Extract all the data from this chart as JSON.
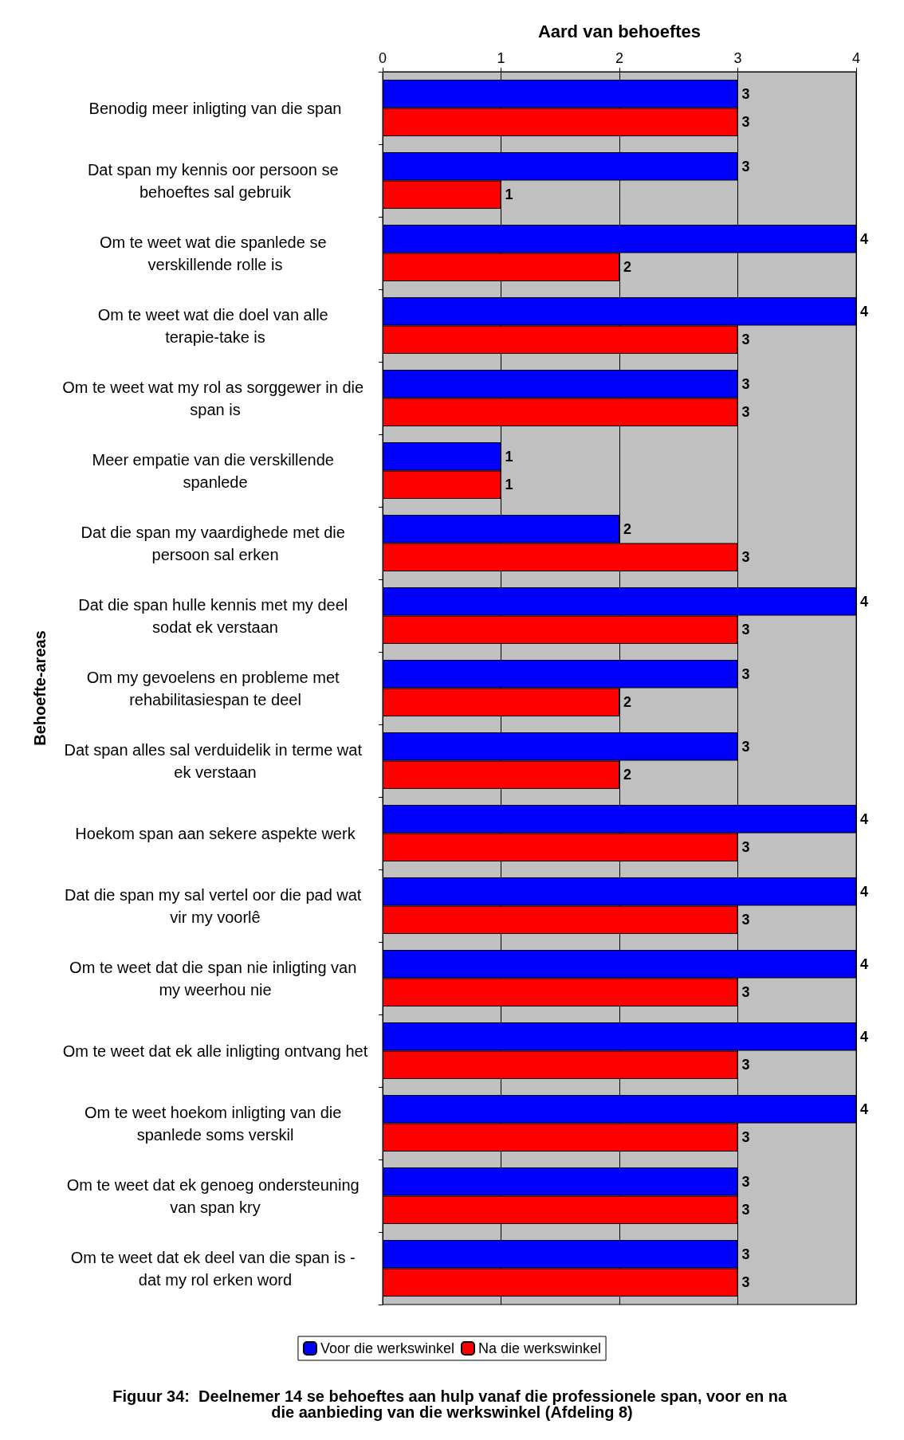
{
  "chart_data": {
    "type": "bar",
    "orientation": "horizontal",
    "title": "Figuur 34:  Deelnemer 14 se behoeftes aan hulp vanaf die professionele span, voor en na die aanbieding van die werkswinkel (Afdeling 8)",
    "xlabel": "Aard van behoeftes",
    "ylabel": "Behoefte-areas",
    "categories": [
      "Benodig meer inligting van die span",
      "Dat span my kennis oor persoon se behoeftes sal gebruik",
      "Om te weet wat die spanlede se verskillende rolle is",
      "Om te weet wat die doel van alle terapie-take is",
      "Om te weet wat my rol as sorggewer in die span is",
      "Meer empatie van die verskillende spanlede",
      "Dat die span my vaardighede met die persoon sal erken",
      "Dat die span hulle kennis met my deel sodat ek verstaan",
      "Om my gevoelens en probleme met rehabilitasiespan te deel",
      "Dat span alles sal verduidelik in terme wat ek verstaan",
      "Hoekom span aan sekere aspekte werk",
      "Dat die span my sal vertel oor die pad wat vir my voorlê",
      "Om te weet dat die span nie inligting van my weerhou nie",
      "Om te weet dat ek alle inligting ontvang het",
      "Om te weet hoekom inligting van die spanlede soms verskil",
      "Om te weet dat ek genoeg ondersteuning van span kry",
      "Om te weet dat ek deel van die span is - dat my rol erken word"
    ],
    "series": [
      {
        "name": "Voor die werkswinkel",
        "color": "#0000ff",
        "values": [
          3,
          3,
          4,
          4,
          3,
          1,
          2,
          4,
          3,
          3,
          4,
          4,
          4,
          4,
          4,
          3,
          3
        ]
      },
      {
        "name": "Na die werkswinkel",
        "color": "#ff0000",
        "values": [
          3,
          1,
          2,
          3,
          3,
          1,
          3,
          3,
          2,
          2,
          3,
          3,
          3,
          3,
          3,
          3,
          3
        ]
      }
    ],
    "xlim": [
      0,
      4
    ],
    "xticks": [
      0,
      1,
      2,
      3,
      4
    ],
    "grid": "x",
    "legend": "bottom",
    "data_labels": true
  }
}
